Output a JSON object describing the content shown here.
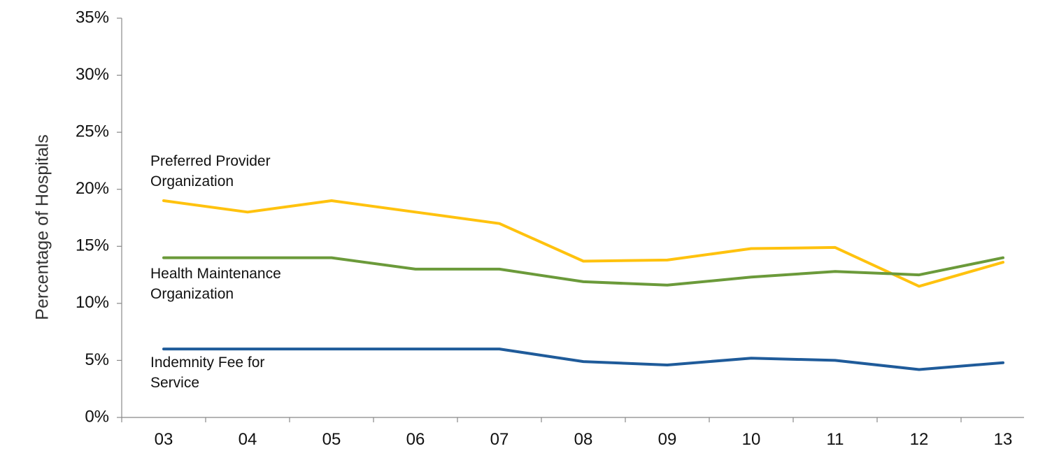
{
  "chart_data": {
    "type": "line",
    "title": "",
    "xlabel": "",
    "ylabel": "Percentage of Hospitals",
    "x": [
      "03",
      "04",
      "05",
      "06",
      "07",
      "08",
      "09",
      "10",
      "11",
      "12",
      "13"
    ],
    "yticks": [
      "0%",
      "5%",
      "10%",
      "15%",
      "20%",
      "25%",
      "30%",
      "35%"
    ],
    "ylim": [
      0,
      35
    ],
    "grid": false,
    "legend": "none",
    "series": [
      {
        "name": "Preferred Provider Organization",
        "label_lines": [
          "Preferred Provider",
          "Organization"
        ],
        "color": "#FFC20E",
        "values": [
          19.0,
          18.0,
          19.0,
          18.0,
          17.0,
          13.7,
          13.8,
          14.8,
          14.9,
          11.5,
          13.6
        ]
      },
      {
        "name": "Health Maintenance Organization",
        "label_lines": [
          "Health Maintenance",
          "Organization"
        ],
        "color": "#6B9A3A",
        "values": [
          14.0,
          14.0,
          14.0,
          13.0,
          13.0,
          11.9,
          11.6,
          12.3,
          12.8,
          12.5,
          14.0
        ]
      },
      {
        "name": "Indemnity Fee for Service",
        "label_lines": [
          "Indemnity Fee for",
          "Service"
        ],
        "color": "#1F5B9A",
        "values": [
          6.0,
          6.0,
          6.0,
          6.0,
          6.0,
          4.9,
          4.6,
          5.2,
          5.0,
          4.2,
          4.8
        ]
      }
    ]
  }
}
